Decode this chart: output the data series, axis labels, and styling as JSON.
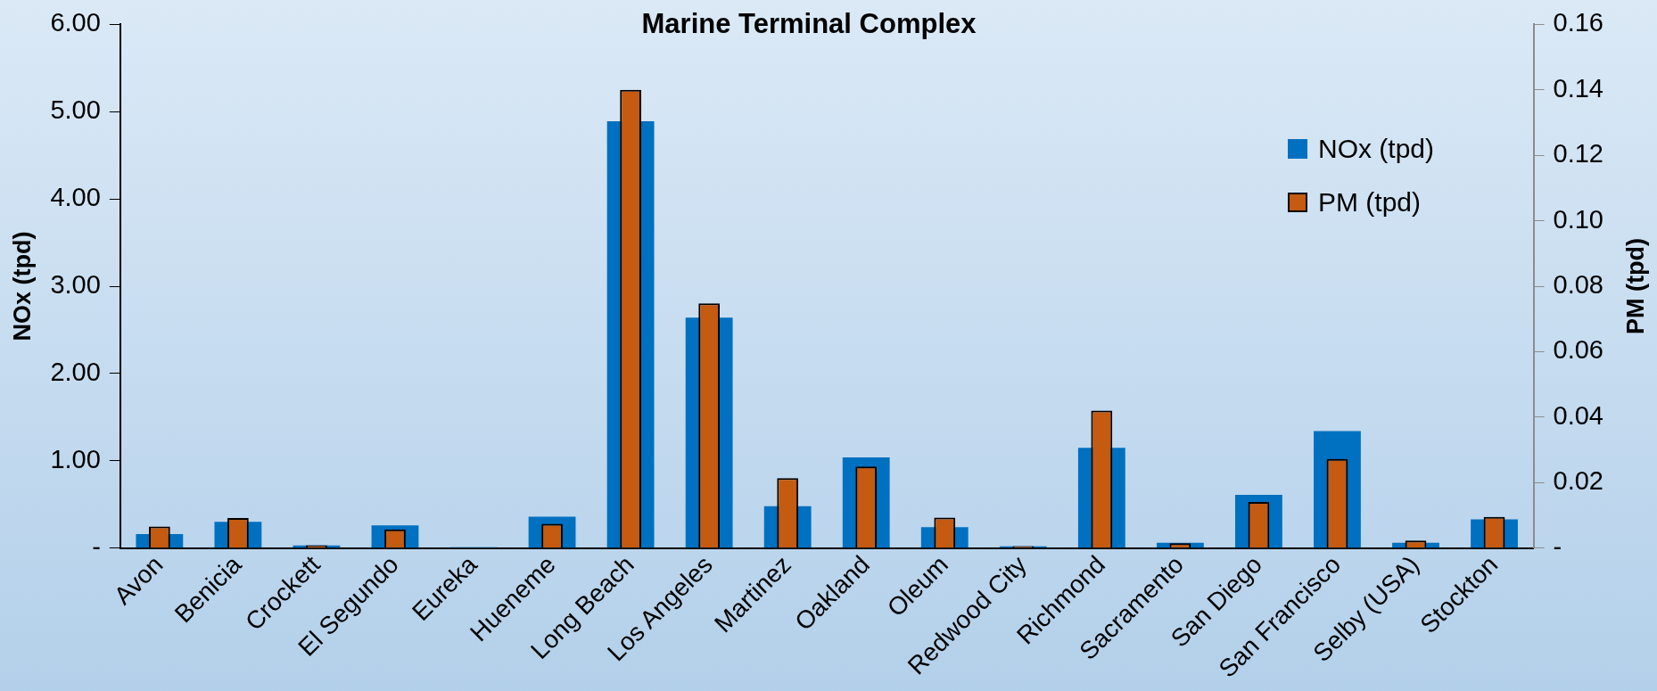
{
  "chart_data": {
    "type": "bar",
    "title": "Marine Terminal Complex",
    "ylabel": "NOx (tpd)",
    "y2label": "PM (tpd)",
    "categories": [
      "Avon",
      "Benicia",
      "Crockett",
      "El Segundo",
      "Eureka",
      "Hueneme",
      "Long Beach",
      "Los Angeles",
      "Martinez",
      "Oakland",
      "Oleum",
      "Redwood City",
      "Richmond",
      "Sacramento",
      "San Diego",
      "San Francisco",
      "Selby (USA)",
      "Stockton"
    ],
    "series": [
      {
        "name": "NOx (tpd)",
        "color": "#0070c0",
        "values": [
          0.16,
          0.3,
          0.03,
          0.26,
          0.01,
          0.36,
          4.89,
          2.64,
          0.48,
          1.04,
          0.24,
          0.02,
          1.15,
          0.06,
          0.61,
          1.34,
          0.06,
          0.33
        ]
      },
      {
        "name": "PM (tpd)",
        "color": "#c55a11",
        "axis": "y2",
        "values": [
          0.0066,
          0.0092,
          0.0009,
          0.0057,
          null,
          0.0074,
          0.14,
          0.0748,
          0.0214,
          0.0249,
          0.0093,
          0.0006,
          0.042,
          0.0015,
          0.0141,
          0.0272,
          0.0023,
          0.0095
        ]
      }
    ],
    "ylim": [
      0,
      6
    ],
    "yticks": [
      {
        "value": 0,
        "label": "-"
      },
      {
        "value": 1,
        "label": "1.00"
      },
      {
        "value": 2,
        "label": "2.00"
      },
      {
        "value": 3,
        "label": "3.00"
      },
      {
        "value": 4,
        "label": "4.00"
      },
      {
        "value": 5,
        "label": "5.00"
      },
      {
        "value": 6,
        "label": "6.00"
      }
    ],
    "y2lim": [
      0,
      0.16
    ],
    "y2ticks": [
      {
        "value": 0,
        "label": "-"
      },
      0.02,
      0.04,
      0.06,
      0.08,
      {
        "value": 0.1,
        "label": "0.10"
      },
      0.12,
      0.14,
      0.16
    ],
    "grid": false,
    "legend": "top right"
  }
}
